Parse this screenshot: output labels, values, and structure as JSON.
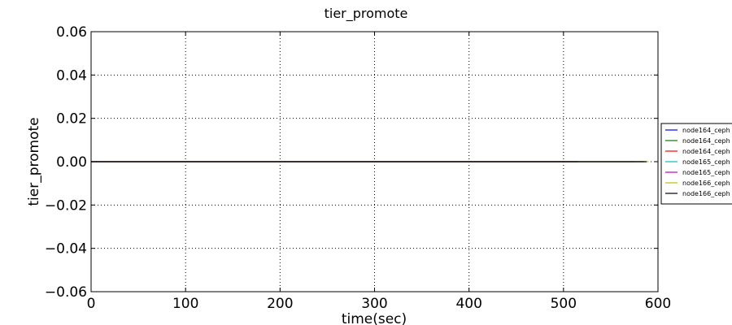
{
  "chart_data": {
    "type": "line",
    "title": "tier_promote",
    "xlabel": "time(sec)",
    "ylabel": "tier_promote",
    "xlim": [
      0,
      600
    ],
    "ylim": [
      -0.06,
      0.06
    ],
    "xticks": [
      0,
      100,
      200,
      300,
      400,
      500,
      600
    ],
    "xtick_labels": [
      "0",
      "100",
      "200",
      "300",
      "400",
      "500",
      "600"
    ],
    "yticks": [
      0.06,
      0.04,
      0.02,
      0.0,
      -0.02,
      -0.04,
      -0.06
    ],
    "ytick_labels": [
      "0.06",
      "0.04",
      "0.02",
      "0.00",
      "−0.02",
      "−0.04",
      "−0.06"
    ],
    "grid": true,
    "legend_position": "right, outside plot",
    "series": [
      {
        "name": "node164_ceph",
        "color": "#0000ff",
        "x": [
          0,
          515
        ],
        "y": [
          0,
          0
        ]
      },
      {
        "name": "node164_ceph",
        "color": "#008000",
        "x": [
          0,
          575
        ],
        "y": [
          0,
          0
        ]
      },
      {
        "name": "node164_ceph",
        "color": "#ff0000",
        "x": [
          0,
          515
        ],
        "y": [
          0,
          0
        ]
      },
      {
        "name": "node165_ceph",
        "color": "#00bfbf",
        "x": [
          0,
          585
        ],
        "y": [
          0,
          0
        ]
      },
      {
        "name": "node165_ceph",
        "color": "#bf00bf",
        "x": [
          0,
          585
        ],
        "y": [
          0,
          0
        ]
      },
      {
        "name": "node166_ceph",
        "color": "#bfbf00",
        "x": [
          0,
          590
        ],
        "y": [
          0,
          0
        ]
      },
      {
        "name": "node166_ceph",
        "color": "#000000",
        "x": [
          0,
          588
        ],
        "y": [
          0,
          0
        ]
      }
    ]
  }
}
